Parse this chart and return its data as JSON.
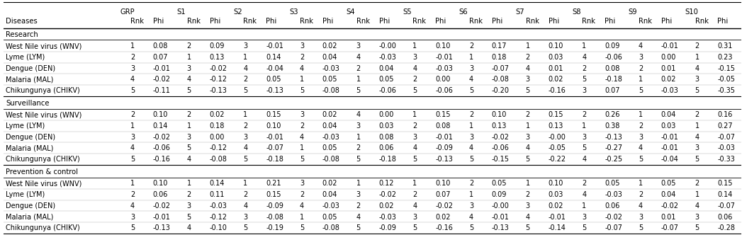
{
  "col_headers_row1": [
    "GRP",
    "S1",
    "S2",
    "S3",
    "S4",
    "S5",
    "S6",
    "S7",
    "S8",
    "S9",
    "S10"
  ],
  "sections": [
    {
      "name": "Research",
      "rows": [
        [
          "West Nile virus (WNV)",
          "1",
          "0.08",
          "2",
          "0.09",
          "3",
          "-0.01",
          "3",
          "0.02",
          "3",
          "-0.00",
          "1",
          "0.10",
          "2",
          "0.17",
          "1",
          "0.10",
          "1",
          "0.09",
          "4",
          "-0.01",
          "2",
          "0.31"
        ],
        [
          "Lyme (LYM)",
          "2",
          "0.07",
          "1",
          "0.13",
          "1",
          "0.14",
          "2",
          "0.04",
          "4",
          "-0.03",
          "3",
          "-0.01",
          "1",
          "0.18",
          "2",
          "0.03",
          "4",
          "-0.06",
          "3",
          "0.00",
          "1",
          "0.23"
        ],
        [
          "Dengue (DEN)",
          "3",
          "-0.01",
          "3",
          "-0.02",
          "4",
          "-0.04",
          "4",
          "-0.03",
          "2",
          "0.04",
          "4",
          "-0.03",
          "3",
          "-0.07",
          "4",
          "0.01",
          "2",
          "0.08",
          "2",
          "0.01",
          "4",
          "-0.15"
        ],
        [
          "Malaria (MAL)",
          "4",
          "-0.02",
          "4",
          "-0.12",
          "2",
          "0.05",
          "1",
          "0.05",
          "1",
          "0.05",
          "2",
          "0.00",
          "4",
          "-0.08",
          "3",
          "0.02",
          "5",
          "-0.18",
          "1",
          "0.02",
          "3",
          "-0.05"
        ],
        [
          "Chikungunya (CHIKV)",
          "5",
          "-0.11",
          "5",
          "-0.13",
          "5",
          "-0.13",
          "5",
          "-0.08",
          "5",
          "-0.06",
          "5",
          "-0.06",
          "5",
          "-0.20",
          "5",
          "-0.16",
          "3",
          "0.07",
          "5",
          "-0.03",
          "5",
          "-0.35"
        ]
      ]
    },
    {
      "name": "Surveillance",
      "rows": [
        [
          "West Nile virus (WNV)",
          "2",
          "0.10",
          "2",
          "0.02",
          "1",
          "0.15",
          "3",
          "0.02",
          "4",
          "0.00",
          "1",
          "0.15",
          "2",
          "0.10",
          "2",
          "0.15",
          "2",
          "0.26",
          "1",
          "0.04",
          "2",
          "0.16"
        ],
        [
          "Lyme (LYM)",
          "1",
          "0.14",
          "1",
          "0.18",
          "2",
          "0.10",
          "2",
          "0.04",
          "3",
          "0.03",
          "2",
          "0.08",
          "1",
          "0.13",
          "1",
          "0.13",
          "1",
          "0.38",
          "2",
          "0.03",
          "1",
          "0.27"
        ],
        [
          "Dengue (DEN)",
          "3",
          "-0.02",
          "3",
          "0.00",
          "3",
          "-0.01",
          "4",
          "-0.03",
          "1",
          "0.08",
          "3",
          "-0.01",
          "3",
          "-0.02",
          "3",
          "-0.00",
          "3",
          "-0.13",
          "3",
          "-0.01",
          "4",
          "-0.07"
        ],
        [
          "Malaria (MAL)",
          "4",
          "-0.06",
          "5",
          "-0.12",
          "4",
          "-0.07",
          "1",
          "0.05",
          "2",
          "0.06",
          "4",
          "-0.09",
          "4",
          "-0.06",
          "4",
          "-0.05",
          "5",
          "-0.27",
          "4",
          "-0.01",
          "3",
          "-0.03"
        ],
        [
          "Chikungunya (CHIKV)",
          "5",
          "-0.16",
          "4",
          "-0.08",
          "5",
          "-0.18",
          "5",
          "-0.08",
          "5",
          "-0.18",
          "5",
          "-0.13",
          "5",
          "-0.15",
          "5",
          "-0.22",
          "4",
          "-0.25",
          "5",
          "-0.04",
          "5",
          "-0.33"
        ]
      ]
    },
    {
      "name": "Prevention & control",
      "rows": [
        [
          "West Nile virus (WNV)",
          "1",
          "0.10",
          "1",
          "0.14",
          "1",
          "0.21",
          "3",
          "0.02",
          "1",
          "0.12",
          "1",
          "0.10",
          "2",
          "0.05",
          "1",
          "0.10",
          "2",
          "0.05",
          "1",
          "0.05",
          "2",
          "0.15"
        ],
        [
          "Lyme (LYM)",
          "2",
          "0.06",
          "2",
          "0.11",
          "2",
          "0.15",
          "2",
          "0.04",
          "3",
          "-0.02",
          "2",
          "0.07",
          "1",
          "0.09",
          "2",
          "0.03",
          "4",
          "-0.03",
          "2",
          "0.04",
          "1",
          "0.14"
        ],
        [
          "Dengue (DEN)",
          "4",
          "-0.02",
          "3",
          "-0.03",
          "4",
          "-0.09",
          "4",
          "-0.03",
          "2",
          "0.02",
          "4",
          "-0.02",
          "3",
          "-0.00",
          "3",
          "0.02",
          "1",
          "0.06",
          "4",
          "-0.02",
          "4",
          "-0.07"
        ],
        [
          "Malaria (MAL)",
          "3",
          "-0.01",
          "5",
          "-0.12",
          "3",
          "-0.08",
          "1",
          "0.05",
          "4",
          "-0.03",
          "3",
          "0.02",
          "4",
          "-0.01",
          "4",
          "-0.01",
          "3",
          "-0.02",
          "3",
          "0.01",
          "3",
          "0.06"
        ],
        [
          "Chikungunya (CHIKV)",
          "5",
          "-0.13",
          "4",
          "-0.10",
          "5",
          "-0.19",
          "5",
          "-0.08",
          "5",
          "-0.09",
          "5",
          "-0.16",
          "5",
          "-0.13",
          "5",
          "-0.14",
          "5",
          "-0.07",
          "5",
          "-0.07",
          "5",
          "-0.28"
        ]
      ]
    }
  ],
  "bg_color": "#ffffff",
  "text_color": "#000000",
  "line_color": "#000000"
}
